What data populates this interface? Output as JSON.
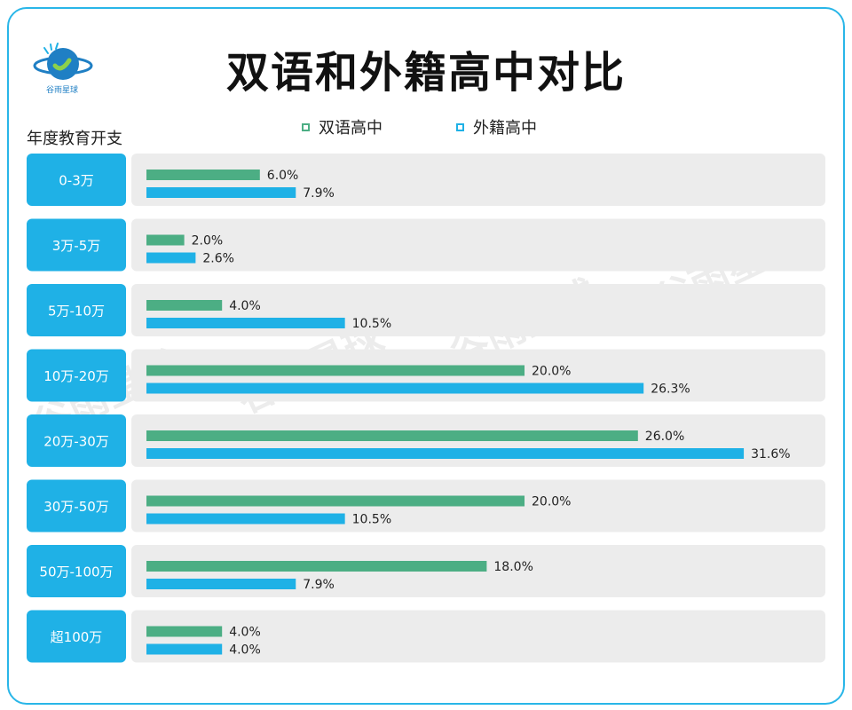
{
  "logo": {
    "text": "谷雨星球"
  },
  "title": "双语和外籍高中对比",
  "watermark": "谷雨星球",
  "chart_data": {
    "type": "bar",
    "orientation": "horizontal",
    "subtitle": "年度教育开支",
    "categories": [
      "0-3万",
      "3万-5万",
      "5万-10万",
      "10万-20万",
      "20万-30万",
      "30万-50万",
      "50万-100万",
      "超100万"
    ],
    "series": [
      {
        "name": "双语高中",
        "color": "#4cae84",
        "values": [
          6.0,
          2.0,
          4.0,
          20.0,
          26.0,
          20.0,
          18.0,
          4.0
        ],
        "labels": [
          "6.0%",
          "2.0%",
          "4.0%",
          "20.0%",
          "26.0%",
          "20.0%",
          "18.0%",
          "4.0%"
        ]
      },
      {
        "name": "外籍高中",
        "color": "#1fb1e6",
        "values": [
          7.9,
          2.6,
          10.5,
          26.3,
          31.6,
          10.5,
          7.9,
          4.0
        ],
        "labels": [
          "7.9%",
          "2.6%",
          "10.5%",
          "26.3%",
          "31.6%",
          "10.5%",
          "7.9%",
          "4.0%"
        ]
      }
    ],
    "xlim": [
      0,
      35
    ],
    "grid": false,
    "legend_position": "top"
  }
}
